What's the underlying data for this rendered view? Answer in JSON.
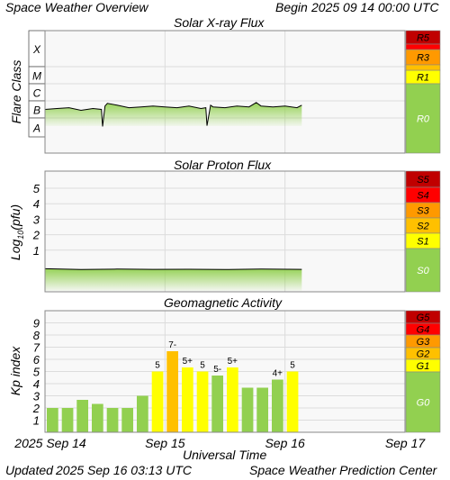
{
  "header": {
    "title": "Space Weather Overview",
    "begin_label": "Begin",
    "begin_value": "2025 09 14 00:00 UTC"
  },
  "footer": {
    "updated_label": "Updated",
    "updated_value": "2025 Sep 16 03:13 UTC",
    "center": "Space Weather Prediction Center"
  },
  "colors": {
    "green": "#92d050",
    "yellow": "#ffff00",
    "gold": "#ffc000",
    "orange": "#ff9900",
    "red": "#ff0000",
    "dark_red": "#c00000",
    "plot_bg": "#f8f8f8",
    "grid": "#dcdcdc"
  },
  "chart_data": [
    {
      "type": "line",
      "title": "Solar X-ray Flux",
      "ylabel": "Flare Class",
      "class_bands": [
        "X",
        "M",
        "C",
        "B",
        "A"
      ],
      "scale_labels": [
        "R5",
        "R3",
        "R1",
        "R0"
      ],
      "xlim": [
        "2025-09-14",
        "2025-09-17"
      ],
      "grid": true,
      "series": [
        {
          "x_days": [
            0,
            0.1,
            0.2,
            0.3,
            0.4,
            0.47,
            0.48,
            0.5,
            0.52,
            0.6,
            0.7,
            0.8,
            0.9,
            1.0,
            1.1,
            1.2,
            1.3,
            1.34,
            1.35,
            1.38,
            1.4,
            1.5,
            1.6,
            1.7,
            1.76,
            1.8,
            1.9,
            2.0,
            2.1,
            2.14
          ],
          "values": [
            1.5,
            1.55,
            1.6,
            1.45,
            1.55,
            1.5,
            0.5,
            1.7,
            1.85,
            1.75,
            1.6,
            1.65,
            1.7,
            1.65,
            1.6,
            1.7,
            1.55,
            1.6,
            0.55,
            1.75,
            1.65,
            1.6,
            1.7,
            1.65,
            1.9,
            1.7,
            1.65,
            1.7,
            1.6,
            1.75
          ]
        }
      ]
    },
    {
      "type": "line",
      "title": "Solar Proton Flux",
      "ylabel": "Log10(pfu)",
      "ylim": [
        -1,
        6
      ],
      "yticks": [
        "1",
        "2",
        "3",
        "4",
        "5"
      ],
      "scale_labels": [
        "S5",
        "S4",
        "S3",
        "S2",
        "S1",
        "S0"
      ],
      "xlim": [
        "2025-09-14",
        "2025-09-17"
      ],
      "grid": true,
      "series": [
        {
          "x_days": [
            0,
            0.3,
            0.6,
            0.9,
            1.2,
            1.5,
            1.8,
            2.14
          ],
          "values": [
            -0.2,
            -0.25,
            -0.22,
            -0.24,
            -0.23,
            -0.25,
            -0.22,
            -0.24
          ]
        }
      ]
    },
    {
      "type": "bar",
      "title": "Geomagnetic Activity",
      "ylabel": "Kp index",
      "ylim": [
        0,
        10
      ],
      "yticks": [
        "1",
        "2",
        "3",
        "4",
        "5",
        "6",
        "7",
        "8",
        "9"
      ],
      "scale_labels": [
        "G5",
        "G4",
        "G3",
        "G2",
        "G1",
        "G0"
      ],
      "xlabel": "Universal Time",
      "xticks": [
        "2025 Sep 14",
        "Sep 15",
        "Sep 16",
        "Sep 17"
      ],
      "xlim": [
        "2025-09-14",
        "2025-09-17"
      ],
      "values": [
        2,
        2,
        2.67,
        2.33,
        2,
        2,
        3,
        5,
        6.67,
        5.33,
        5,
        4.67,
        5.33,
        3.67,
        3.67,
        4.33,
        5
      ],
      "bar_labels": [
        "",
        "",
        "",
        "",
        "",
        "",
        "",
        "5",
        "7-",
        "5+",
        "5",
        "5-",
        "5+",
        "",
        "",
        "4+",
        "5"
      ]
    }
  ]
}
